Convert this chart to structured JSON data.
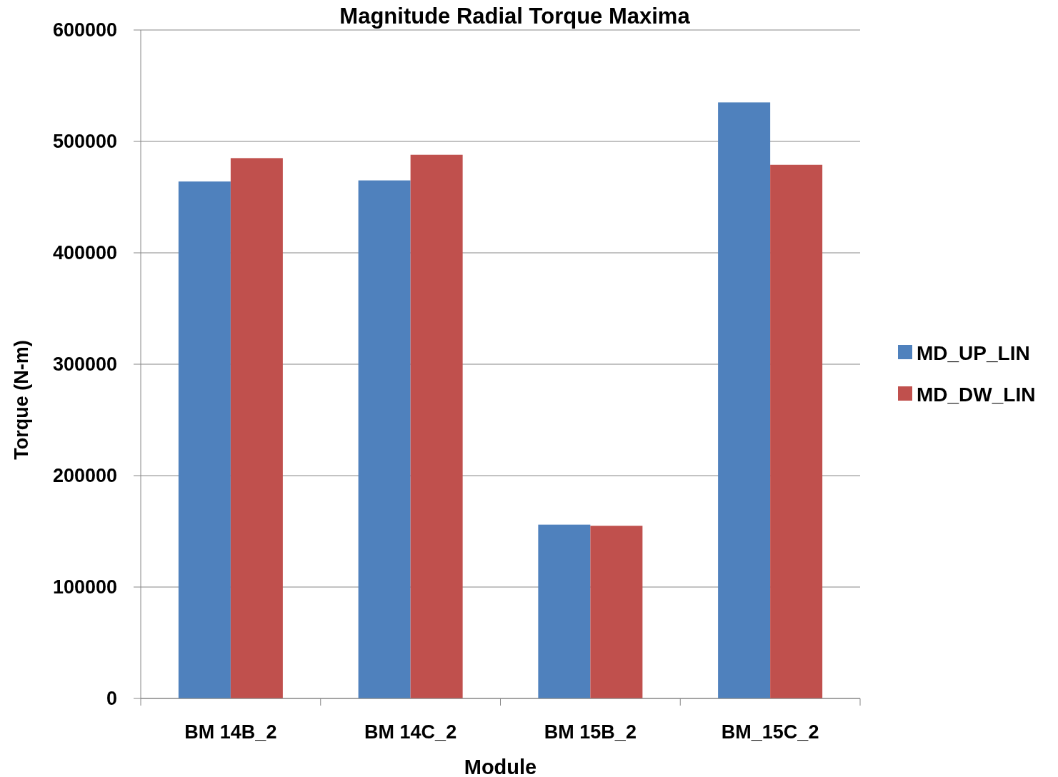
{
  "chart_data": {
    "type": "bar",
    "title": "Magnitude Radial Torque Maxima",
    "xlabel": "Module",
    "ylabel": "Torque (N-m)",
    "categories": [
      "BM 14B_2",
      "BM 14C_2",
      "BM 15B_2",
      "BM_15C_2"
    ],
    "series": [
      {
        "name": "MD_UP_LIN",
        "color": "#4f81bd",
        "values": [
          464000,
          465000,
          156000,
          535000
        ]
      },
      {
        "name": "MD_DW_LIN",
        "color": "#c0504d",
        "values": [
          485000,
          488000,
          155000,
          479000
        ]
      }
    ],
    "ylim": [
      0,
      600000
    ],
    "yticks": [
      0,
      100000,
      200000,
      300000,
      400000,
      500000,
      600000
    ],
    "grid": "y",
    "legend": "right"
  }
}
